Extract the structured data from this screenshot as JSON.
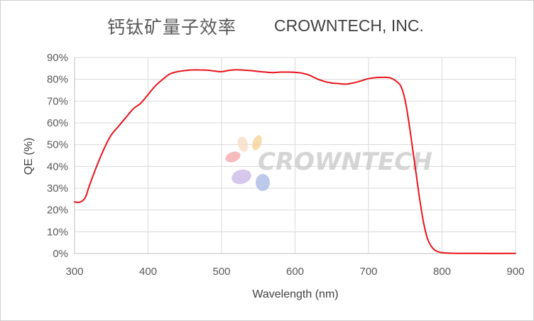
{
  "header": {
    "title_cn": "钙钛矿量子效率",
    "title_en": "CROWNTECH, INC."
  },
  "watermark": {
    "text": "CROWNTECH",
    "colors": [
      "#f4a6a6",
      "#f6cf8e",
      "#c7b6e6",
      "#a8b7e4",
      "#f8dcc4"
    ]
  },
  "chart_data": {
    "type": "line",
    "xlabel": "Wavelength (nm)",
    "ylabel": "QE (%)",
    "xlim": [
      300,
      900
    ],
    "ylim": [
      0,
      90
    ],
    "x_ticks": [
      300,
      400,
      500,
      600,
      700,
      800,
      900
    ],
    "y_ticks": [
      0,
      10,
      20,
      30,
      40,
      50,
      60,
      70,
      80,
      90
    ],
    "y_tick_labels": [
      "0%",
      "10%",
      "20%",
      "30%",
      "40%",
      "50%",
      "60%",
      "70%",
      "80%",
      "90%"
    ],
    "grid": true,
    "legend": "none",
    "series": [
      {
        "color": "#e8141c",
        "x": [
          300,
          305,
          310,
          315,
          320,
          330,
          340,
          350,
          360,
          370,
          380,
          390,
          400,
          410,
          420,
          430,
          440,
          450,
          460,
          470,
          480,
          490,
          500,
          510,
          520,
          530,
          540,
          550,
          560,
          570,
          580,
          590,
          600,
          610,
          620,
          630,
          640,
          650,
          660,
          670,
          680,
          690,
          700,
          710,
          720,
          730,
          740,
          745,
          750,
          755,
          760,
          765,
          770,
          775,
          780,
          785,
          790,
          795,
          800,
          810,
          820,
          850,
          900
        ],
        "y": [
          23.7,
          23.5,
          24,
          26,
          31,
          40,
          48,
          54.5,
          58.5,
          62.5,
          66.5,
          69,
          73,
          77,
          80,
          82.5,
          83.5,
          84,
          84.3,
          84.3,
          84.2,
          83.8,
          83.5,
          84.1,
          84.4,
          84.2,
          84,
          83.6,
          83.3,
          83.1,
          83.3,
          83.3,
          83.2,
          82.8,
          81.8,
          80.2,
          79,
          78.3,
          78,
          77.8,
          78.4,
          79.3,
          80.3,
          80.8,
          80.9,
          80.6,
          78.5,
          76,
          70,
          60,
          48,
          36,
          24,
          14,
          7,
          3.5,
          1.6,
          0.8,
          0.4,
          0.2,
          0.1,
          0.05,
          0.05
        ]
      }
    ]
  }
}
